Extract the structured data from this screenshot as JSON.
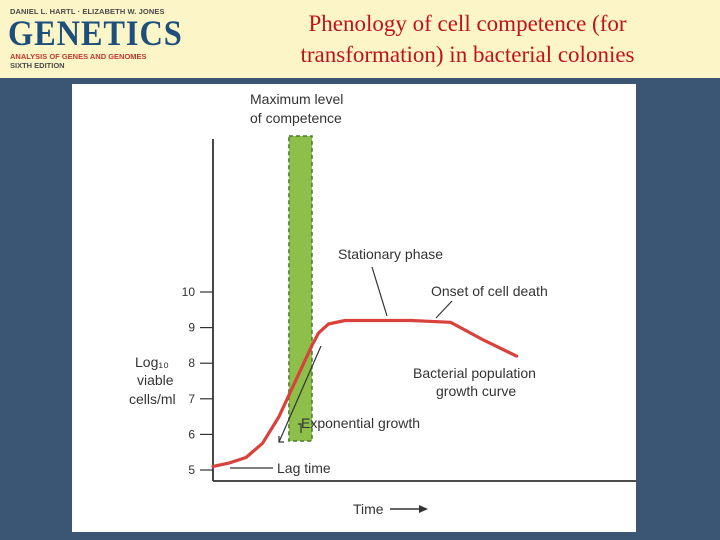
{
  "header": {
    "book_authors": "DANIEL L. HARTL · ELIZABETH W. JONES",
    "book_title": "GENETICS",
    "book_subtitle": "ANALYSIS OF GENES AND GENOMES",
    "book_edition": "SIXTH EDITION",
    "title_line1": "Phenology of cell competence (for",
    "title_line2": "transformation) in bacterial colonies"
  },
  "chart_data": {
    "type": "line",
    "ylabel_line1": "Log₁₀",
    "ylabel_line2": "viable",
    "ylabel_line3": "cells/ml",
    "xlabel": "Time",
    "yticks": [
      5,
      6,
      7,
      8,
      9,
      10
    ],
    "ylim": [
      5,
      10
    ],
    "competence_label_line1": "Maximum level",
    "competence_label_line2": "of competence",
    "annotations": {
      "stationary": "Stationary phase",
      "death": "Onset of cell death",
      "population_line1": "Bacterial population",
      "population_line2": "growth curve",
      "exponential": "Exponential growth",
      "lag": "Lag time"
    },
    "series": [
      {
        "x": [
          0,
          0.5,
          1.0,
          1.5,
          2.0,
          2.5,
          3.0,
          3.2,
          3.5,
          4.0,
          5.0,
          6.0,
          7.2,
          8.2,
          9.2
        ],
        "y": [
          5.1,
          5.2,
          5.35,
          5.75,
          6.5,
          7.5,
          8.5,
          8.85,
          9.1,
          9.2,
          9.2,
          9.2,
          9.15,
          8.65,
          8.2
        ]
      }
    ],
    "competence_band_x": [
      2.3,
      3.0
    ],
    "colors": {
      "curve": "#d8413c",
      "band_fill": "#8dbf4a",
      "band_edge": "#4a7a28",
      "axis": "#333333"
    }
  }
}
